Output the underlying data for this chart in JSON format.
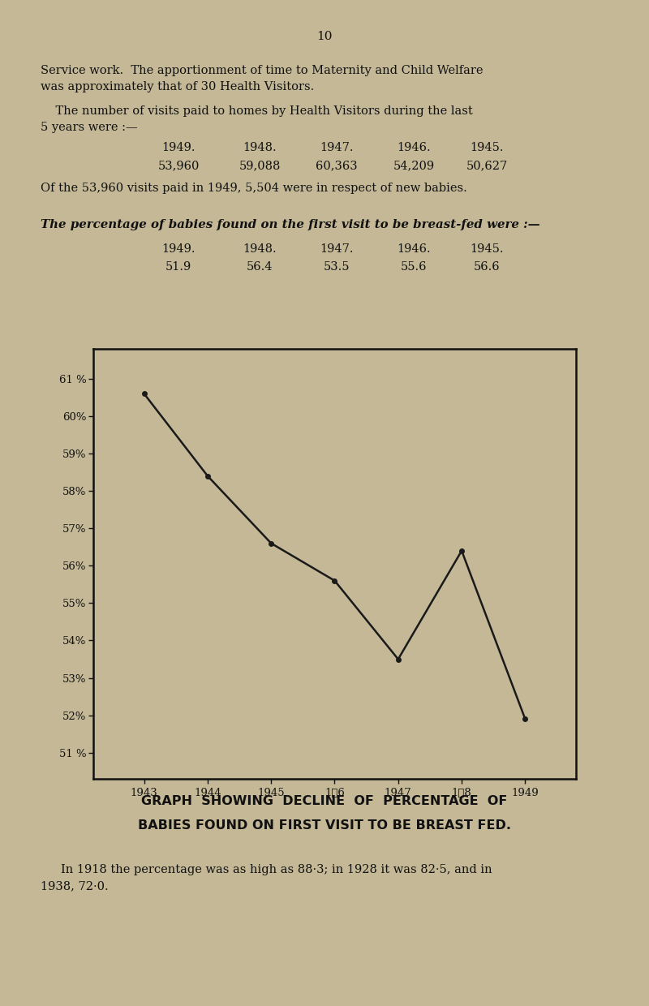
{
  "background_color": "#c4b896",
  "page_background": "#c4b896",
  "page_number": "10",
  "para1_line1": "Service work.  The apportionment of time to Maternity and Child Welfare",
  "para1_line2": "was approximately that of 30 Health Visitors.",
  "para2_indent": "    The number of visits paid to homes by Health Visitors during the last",
  "para2_line2": "5 years were :—",
  "visits_years": [
    "1949.",
    "1948.",
    "1947.",
    "1946.",
    "1945."
  ],
  "visits_values": [
    "53,960",
    "59,088",
    "60,363",
    "54,209",
    "50,627"
  ],
  "para3": "Of the 53,960 visits paid in 1949, 5,504 were in respect of new babies.",
  "para4_line1": "The percentage of babies found on the first visit to be breast-fed were :—",
  "pct_years": [
    "1949.",
    "1948.",
    "1947.",
    "1946.",
    "1945."
  ],
  "pct_values": [
    "51.9",
    "56.4",
    "53.5",
    "55.6",
    "56.6"
  ],
  "graph_years": [
    1943,
    1944,
    1945,
    1946,
    1947,
    1948,
    1949
  ],
  "graph_x_labels": [
    "1943",
    "1944",
    "1945",
    "1Ѡ6",
    "1947",
    "1Ѡ8",
    "1949"
  ],
  "graph_values": [
    60.6,
    58.4,
    56.6,
    55.6,
    53.5,
    56.4,
    51.9
  ],
  "graph_yticks": [
    51,
    52,
    53,
    54,
    55,
    56,
    57,
    58,
    59,
    60,
    61
  ],
  "graph_ytick_labels": [
    "51 %",
    "52%",
    "53%",
    "54%",
    "55%",
    "56%",
    "57%",
    "58%",
    "59%",
    "60%",
    "61 %"
  ],
  "graph_ylim": [
    50.3,
    61.8
  ],
  "graph_title_line1": "GRAPH  SHOWING  DECLINE  OF  PERCENTAGE  OF",
  "graph_title_line2": "BABIES FOUND ON FIRST VISIT TO BE BREAST FED.",
  "footer_line1": "In 1918 the percentage was as high as 88·3; in 1928 it was 82·5, and in",
  "footer_line2": "1938, 72·0.",
  "line_color": "#1a1a1a",
  "text_color": "#111111",
  "marker_size": 4
}
